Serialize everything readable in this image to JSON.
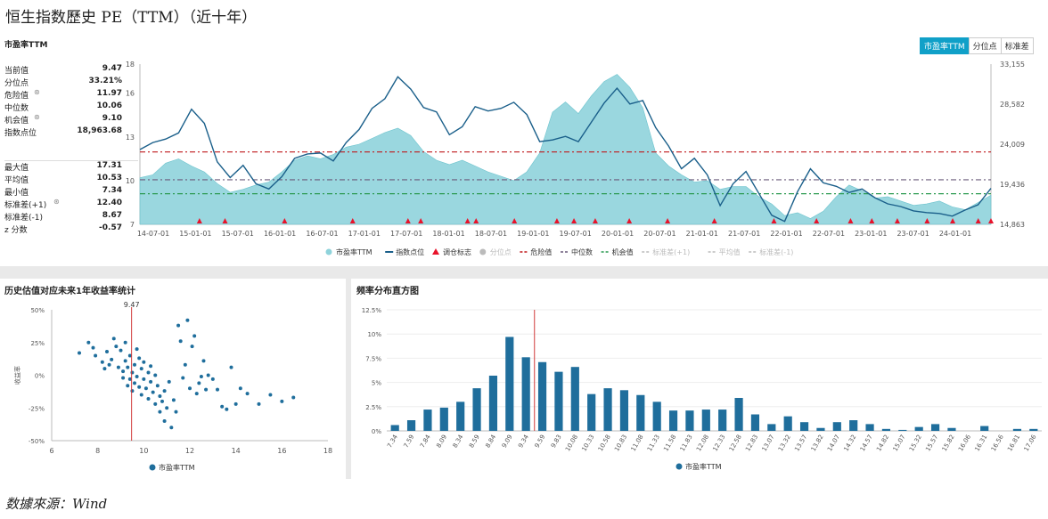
{
  "title": "恒生指数歷史 PE（TTM）（近十年）",
  "source": "数據來源：Wind",
  "top_panel": {
    "section_label": "市盈率TTM",
    "buttons": [
      {
        "label": "市盈率TTM",
        "active": true
      },
      {
        "label": "分位点",
        "active": false
      },
      {
        "label": "标准差",
        "active": false
      }
    ],
    "stats_group1": [
      {
        "label": "当前值",
        "value": "9.47",
        "icon": false
      },
      {
        "label": "分位点",
        "value": "33.21%",
        "icon": false
      },
      {
        "label": "危险值",
        "value": "11.97",
        "icon": true
      },
      {
        "label": "中位数",
        "value": "10.06",
        "icon": false
      },
      {
        "label": "机会值",
        "value": "9.10",
        "icon": true
      },
      {
        "label": "指数点位",
        "value": "18,963.68",
        "icon": false
      }
    ],
    "stats_group2": [
      {
        "label": "最大值",
        "value": "17.31",
        "icon": false
      },
      {
        "label": "平均值",
        "value": "10.53",
        "icon": false
      },
      {
        "label": "最小值",
        "value": "7.34",
        "icon": false
      },
      {
        "label": "标准差(+1)",
        "value": "12.40",
        "icon": true
      },
      {
        "label": "标准差(-1)",
        "value": "8.67",
        "icon": false
      },
      {
        "label": "z 分数",
        "value": "-0.57",
        "icon": false
      }
    ],
    "legend": [
      {
        "label": "市盈率TTM",
        "type": "dot",
        "color": "#8fd3db",
        "active": true
      },
      {
        "label": "指数点位",
        "type": "line",
        "color": "#1a5f8a",
        "active": true
      },
      {
        "label": "调仓标志",
        "type": "triangle",
        "color": "#e8132b",
        "active": true
      },
      {
        "label": "分位点",
        "type": "dot",
        "color": "#bbbbbb",
        "active": false
      },
      {
        "label": "危险值",
        "type": "dash",
        "color": "#c0181c",
        "active": true
      },
      {
        "label": "中位数",
        "type": "dash",
        "color": "#6a5a7a",
        "active": true
      },
      {
        "label": "机会值",
        "type": "dash",
        "color": "#2a9a50",
        "active": true
      },
      {
        "label": "标准差(+1)",
        "type": "dash",
        "color": "#bbbbbb",
        "active": false
      },
      {
        "label": "平均值",
        "type": "dash",
        "color": "#bbbbbb",
        "active": false
      },
      {
        "label": "标准差(-1)",
        "type": "dash",
        "color": "#bbbbbb",
        "active": false
      }
    ]
  },
  "bottom_left": {
    "title": "历史估值对应未来1年收益率统计"
  },
  "bottom_right": {
    "title": "频率分布直方图"
  },
  "chart_data": [
    {
      "type": "area",
      "x_ticks": [
        "14-07-01",
        "15-01-01",
        "15-07-01",
        "16-01-01",
        "16-07-01",
        "17-01-01",
        "17-07-01",
        "18-01-01",
        "18-07-01",
        "19-01-01",
        "19-07-01",
        "20-01-01",
        "20-07-01",
        "21-01-01",
        "21-07-01",
        "22-01-01",
        "22-07-01",
        "23-01-01",
        "23-07-01",
        "24-01-01"
      ],
      "y_left_ticks": [
        "7",
        "10",
        "13",
        "16",
        "18"
      ],
      "y_left_range": [
        7,
        18
      ],
      "y_right_ticks": [
        "14,863",
        "19,436",
        "24,009",
        "28,582",
        "33,155"
      ],
      "y_right_range": [
        14863,
        33155
      ],
      "series": [
        {
          "name": "市盈率TTM",
          "axis": "left",
          "values": [
            10.2,
            10.4,
            11.2,
            11.5,
            11.0,
            10.6,
            9.8,
            9.2,
            9.4,
            9.7,
            9.9,
            10.6,
            11.4,
            11.7,
            11.5,
            11.8,
            12.3,
            12.5,
            12.9,
            13.3,
            13.6,
            13.1,
            12.0,
            11.4,
            11.1,
            11.4,
            11.0,
            10.6,
            10.3,
            10.0,
            10.6,
            11.9,
            14.7,
            15.4,
            14.6,
            15.8,
            16.8,
            17.3,
            16.4,
            15.0,
            11.9,
            11.0,
            10.4,
            9.9,
            10.0,
            9.4,
            9.6,
            9.6,
            8.9,
            8.4,
            7.6,
            7.8,
            7.4,
            7.9,
            8.9,
            9.7,
            9.3,
            8.8,
            8.9,
            8.6,
            8.3,
            8.4,
            8.6,
            8.2,
            8.0,
            8.5,
            9.0
          ]
        },
        {
          "name": "指数点位",
          "axis": "right",
          "values": [
            23400,
            24200,
            24600,
            25300,
            28000,
            26400,
            22000,
            20200,
            21600,
            19500,
            18900,
            20300,
            22400,
            22900,
            23000,
            22100,
            24200,
            25700,
            28100,
            29200,
            31700,
            30300,
            28200,
            27700,
            25100,
            26000,
            28300,
            27800,
            28100,
            28800,
            27400,
            24300,
            24500,
            24900,
            24300,
            26500,
            28700,
            30400,
            28600,
            29000,
            25900,
            23800,
            21200,
            22400,
            20500,
            17000,
            19500,
            20900,
            18400,
            15900,
            15200,
            18600,
            21200,
            19600,
            19200,
            18500,
            18900,
            17900,
            17200,
            16900,
            16400,
            16200,
            16100,
            15800,
            16500,
            17100,
            18963.68
          ]
        }
      ],
      "reference_lines": [
        {
          "name": "危险值",
          "value": 11.97
        },
        {
          "name": "中位数",
          "value": 10.06
        },
        {
          "name": "机会值",
          "value": 9.1
        }
      ],
      "markers": {
        "name": "调仓标志",
        "x_fraction": [
          0.07,
          0.1,
          0.17,
          0.25,
          0.315,
          0.33,
          0.385,
          0.395,
          0.44,
          0.49,
          0.51,
          0.535,
          0.575,
          0.62,
          0.675,
          0.745,
          0.795,
          0.835,
          0.86,
          0.89,
          0.925,
          0.955,
          0.985,
          1.0
        ]
      }
    },
    {
      "type": "scatter",
      "title": "历史估值对应未来1年收益率统计",
      "xlabel": "",
      "ylabel": "收益率",
      "xlim": [
        6,
        18
      ],
      "ylim": [
        -50,
        50
      ],
      "x_ticks": [
        "6",
        "8",
        "10",
        "12",
        "14",
        "16",
        "18"
      ],
      "y_ticks": [
        "-50%",
        "-25%",
        "0%",
        "25%",
        "50%"
      ],
      "current_value": 9.47,
      "current_label": "9.47",
      "legend": "市盈率TTM",
      "points": [
        [
          7.2,
          17
        ],
        [
          7.6,
          25
        ],
        [
          7.8,
          21
        ],
        [
          7.9,
          15
        ],
        [
          8.2,
          10
        ],
        [
          8.3,
          5
        ],
        [
          8.4,
          18
        ],
        [
          8.5,
          8
        ],
        [
          8.6,
          12
        ],
        [
          8.7,
          28
        ],
        [
          8.8,
          22
        ],
        [
          8.9,
          6
        ],
        [
          9.0,
          19
        ],
        [
          9.1,
          3
        ],
        [
          9.1,
          -2
        ],
        [
          9.2,
          25
        ],
        [
          9.2,
          11
        ],
        [
          9.3,
          -8
        ],
        [
          9.3,
          6
        ],
        [
          9.4,
          15
        ],
        [
          9.4,
          -3
        ],
        [
          9.5,
          2
        ],
        [
          9.5,
          -12
        ],
        [
          9.6,
          8
        ],
        [
          9.6,
          -6
        ],
        [
          9.7,
          20
        ],
        [
          9.7,
          -1
        ],
        [
          9.8,
          13
        ],
        [
          9.8,
          -9
        ],
        [
          9.9,
          5
        ],
        [
          9.9,
          -15
        ],
        [
          10.0,
          -3
        ],
        [
          10.0,
          10
        ],
        [
          10.1,
          -10
        ],
        [
          10.2,
          2
        ],
        [
          10.2,
          -18
        ],
        [
          10.3,
          -5
        ],
        [
          10.3,
          7
        ],
        [
          10.4,
          -13
        ],
        [
          10.5,
          -22
        ],
        [
          10.5,
          0
        ],
        [
          10.6,
          -8
        ],
        [
          10.7,
          -28
        ],
        [
          10.7,
          -16
        ],
        [
          10.8,
          -20
        ],
        [
          10.9,
          -35
        ],
        [
          10.9,
          -12
        ],
        [
          11.0,
          -25
        ],
        [
          11.1,
          -5
        ],
        [
          11.2,
          -40
        ],
        [
          11.3,
          -19
        ],
        [
          11.4,
          -28
        ],
        [
          11.5,
          38
        ],
        [
          11.6,
          26
        ],
        [
          11.7,
          -2
        ],
        [
          11.8,
          8
        ],
        [
          11.9,
          42
        ],
        [
          12.0,
          -10
        ],
        [
          12.1,
          22
        ],
        [
          12.2,
          30
        ],
        [
          12.3,
          -14
        ],
        [
          12.4,
          -6
        ],
        [
          12.5,
          -1
        ],
        [
          12.6,
          11
        ],
        [
          12.7,
          -11
        ],
        [
          12.8,
          0
        ],
        [
          13.0,
          -3
        ],
        [
          13.2,
          -11
        ],
        [
          13.4,
          -24
        ],
        [
          13.6,
          -26
        ],
        [
          13.8,
          6
        ],
        [
          14.0,
          -22
        ],
        [
          14.2,
          -10
        ],
        [
          14.5,
          -14
        ],
        [
          15.0,
          -22
        ],
        [
          15.5,
          -15
        ],
        [
          16.0,
          -20
        ],
        [
          16.5,
          -17
        ]
      ]
    },
    {
      "type": "bar",
      "title": "频率分布直方图",
      "categories": [
        "7.34",
        "7.59",
        "7.84",
        "8.09",
        "8.34",
        "8.59",
        "8.84",
        "9.09",
        "9.34",
        "9.59",
        "9.83",
        "10.08",
        "10.33",
        "10.58",
        "10.83",
        "11.08",
        "11.33",
        "11.58",
        "11.83",
        "12.08",
        "12.33",
        "12.58",
        "12.83",
        "13.07",
        "13.32",
        "13.57",
        "13.82",
        "14.07",
        "14.32",
        "14.57",
        "14.82",
        "15.07",
        "15.32",
        "15.57",
        "15.82",
        "16.06",
        "16.31",
        "16.56",
        "16.81",
        "17.06"
      ],
      "values": [
        0.6,
        1.1,
        2.2,
        2.4,
        3.0,
        4.4,
        5.7,
        9.7,
        7.6,
        7.1,
        6.1,
        6.6,
        3.8,
        4.4,
        4.2,
        3.7,
        3.0,
        2.1,
        2.1,
        2.2,
        2.2,
        3.4,
        1.7,
        0.7,
        1.5,
        0.9,
        0.3,
        0.9,
        1.1,
        0.7,
        0.2,
        0.1,
        0.4,
        0.7,
        0.3,
        0,
        0.5,
        0,
        0.2,
        0.2
      ],
      "ylim": [
        0,
        12.5
      ],
      "y_ticks": [
        "0%",
        "2.5%",
        "5%",
        "7.5%",
        "10%",
        "12.5%"
      ],
      "current_value": 9.47,
      "legend": "市盈率TTM"
    }
  ]
}
